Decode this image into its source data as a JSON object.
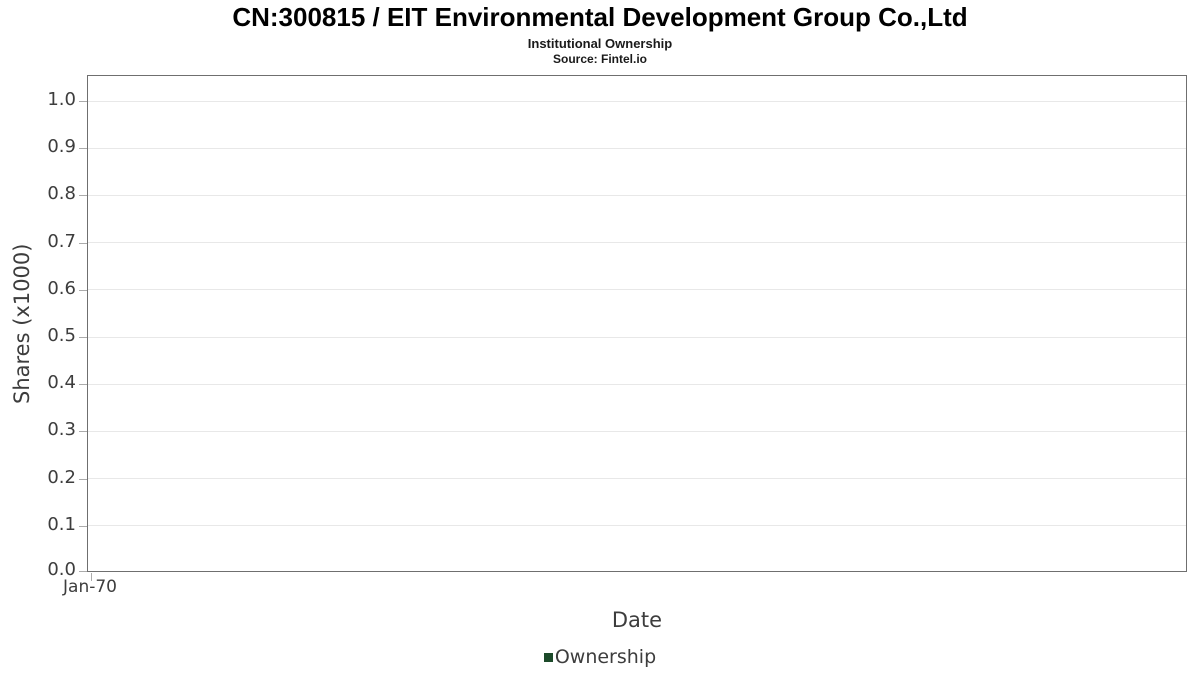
{
  "header": {
    "title": "CN:300815 / EIT Environmental Development Group Co.,Ltd",
    "subtitle": "Institutional Ownership",
    "source": "Source: Fintel.io"
  },
  "chart_data": {
    "type": "bar",
    "title": "CN:300815 / EIT Environmental Development Group Co.,Ltd",
    "subtitle": "Institutional Ownership",
    "source": "Source: Fintel.io",
    "xlabel": "Date",
    "ylabel": "Shares (x1000)",
    "x": [],
    "series": [
      {
        "name": "Ownership",
        "color": "#1c4a2a",
        "values": []
      }
    ],
    "xticks": [
      "Jan-70"
    ],
    "yticks": [
      "0.0",
      "0.1",
      "0.2",
      "0.3",
      "0.4",
      "0.5",
      "0.6",
      "0.7",
      "0.8",
      "0.9",
      "1.0"
    ],
    "ylim": [
      0,
      1.053
    ],
    "grid": true,
    "legend_position": "bottom-center",
    "plot_is_empty": true
  },
  "legend": {
    "items": [
      {
        "label": "Ownership",
        "color": "#1c4a2a"
      }
    ]
  },
  "colors": {
    "background": "#ffffff",
    "title_text": "#000000",
    "axis_text": "#3d3d3d",
    "plot_border": "#6f6f6f",
    "gridline": "#e8e8e8",
    "tick_mark": "#ababab",
    "legend_marker": "#1c4a2a"
  }
}
